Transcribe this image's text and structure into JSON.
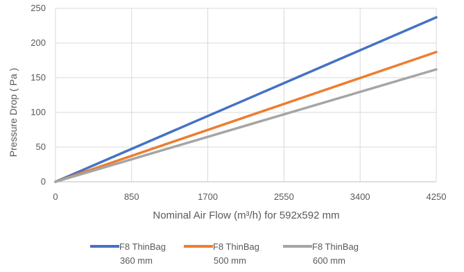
{
  "chart_data": {
    "type": "line",
    "xlabel": "Nominal Air Flow (m³/h) for 592x592 mm",
    "ylabel": "Pressure Drop ( Pa )",
    "xlim": [
      0,
      4250
    ],
    "ylim": [
      0,
      250
    ],
    "x_ticks": [
      "0",
      "850",
      "1700",
      "2550",
      "3400",
      "4250"
    ],
    "y_ticks": [
      "0",
      "50",
      "100",
      "150",
      "200",
      "250"
    ],
    "grid": true,
    "legend_position": "bottom",
    "series": [
      {
        "name_line1": "F8 ThinBag",
        "name_line2": "360 mm",
        "color": "#4472C4",
        "x": [
          0,
          4250
        ],
        "y": [
          0,
          237
        ]
      },
      {
        "name_line1": "F8 ThinBag",
        "name_line2": "500 mm",
        "color": "#ED7D31",
        "x": [
          0,
          4250
        ],
        "y": [
          0,
          187
        ]
      },
      {
        "name_line1": "F8 ThinBag",
        "name_line2": "600 mm",
        "color": "#A5A5A5",
        "x": [
          0,
          4250
        ],
        "y": [
          0,
          162
        ]
      }
    ]
  }
}
